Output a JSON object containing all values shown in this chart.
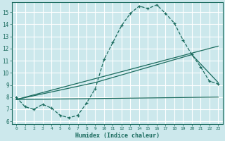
{
  "xlabel": "Humidex (Indice chaleur)",
  "ylabel": "",
  "bg_color": "#cce8ec",
  "grid_color": "#ffffff",
  "line_color": "#1a6b5e",
  "xlim": [
    -0.5,
    23.5
  ],
  "ylim": [
    5.8,
    15.8
  ],
  "xticks": [
    0,
    1,
    2,
    3,
    4,
    5,
    6,
    7,
    8,
    9,
    10,
    11,
    12,
    13,
    14,
    15,
    16,
    17,
    18,
    19,
    20,
    21,
    22,
    23
  ],
  "yticks": [
    6,
    7,
    8,
    9,
    10,
    11,
    12,
    13,
    14,
    15
  ],
  "curve1_x": [
    0,
    1,
    2,
    3,
    4,
    5,
    6,
    7,
    8,
    9,
    10,
    11,
    12,
    13,
    14,
    15,
    16,
    17,
    18,
    19,
    20,
    21,
    22,
    23
  ],
  "curve1_y": [
    8.0,
    7.2,
    7.0,
    7.4,
    7.1,
    6.5,
    6.3,
    6.5,
    7.5,
    8.7,
    11.1,
    12.5,
    13.9,
    14.9,
    15.5,
    15.3,
    15.6,
    14.9,
    14.1,
    12.7,
    11.5,
    10.5,
    9.3,
    9.1
  ],
  "curve2_x": [
    0,
    23
  ],
  "curve2_y": [
    7.8,
    8.0
  ],
  "curve3_x": [
    0,
    23
  ],
  "curve3_y": [
    7.8,
    12.2
  ],
  "curve4_x": [
    0,
    9,
    20,
    23
  ],
  "curve4_y": [
    7.8,
    9.2,
    11.5,
    9.2
  ]
}
